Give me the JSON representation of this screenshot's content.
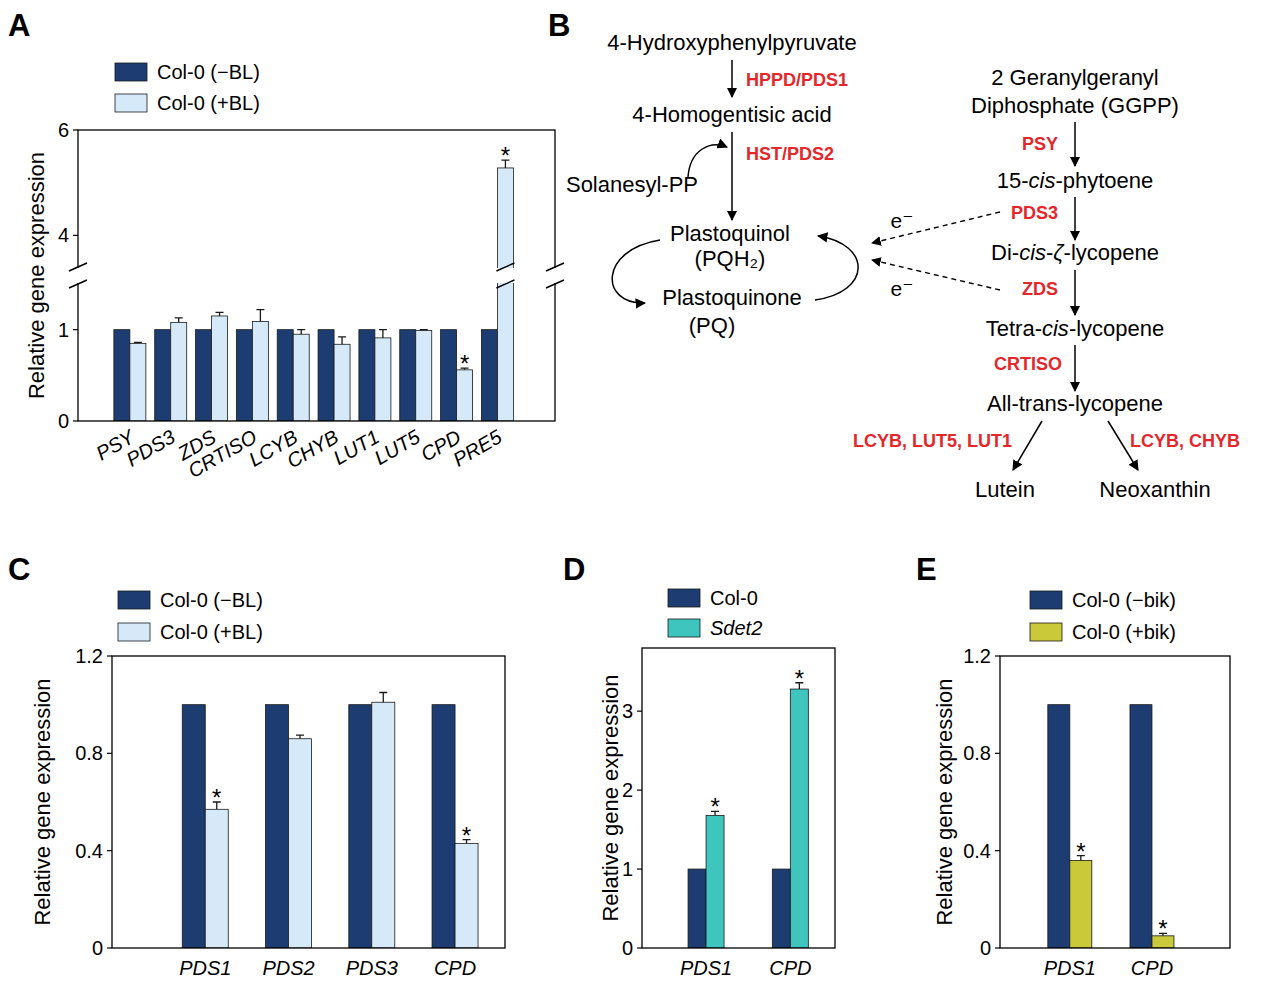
{
  "chart_data": [
    {
      "panel_label": "A",
      "type": "bar",
      "y_label": "Relative gene expression",
      "categories": [
        "PSY",
        "PDS3",
        "ZDS",
        "CRTISO",
        "LCYB",
        "CHYB",
        "LUT1",
        "LUT5",
        "CPD",
        "PRE5"
      ],
      "series": [
        {
          "name": "Col-0 (−BL)",
          "color": "#1c3c72",
          "values": [
            1,
            1,
            1,
            1,
            1,
            1,
            1,
            1,
            1,
            1
          ]
        },
        {
          "name": "Col-0 (+BL)",
          "color": "#d5e9f8",
          "values": [
            0.85,
            1.08,
            1.15,
            1.09,
            0.95,
            0.84,
            0.91,
            0.99,
            0.56,
            5.28
          ],
          "errors": [
            0.01,
            0.05,
            0.04,
            0.13,
            0.05,
            0.08,
            0.09,
            0.01,
            0.02,
            0.15
          ],
          "significance": [
            null,
            null,
            null,
            null,
            null,
            null,
            null,
            null,
            "*",
            "*"
          ]
        }
      ],
      "ylim": [
        0,
        6
      ],
      "yticks": [
        0,
        1,
        4,
        6
      ],
      "y_break": [
        1.5,
        3.4
      ],
      "legend": "top-left"
    },
    {
      "panel_label": "C",
      "type": "bar",
      "y_label": "Relative gene expression",
      "categories": [
        "PDS1",
        "PDS2",
        "PDS3",
        "CPD"
      ],
      "series": [
        {
          "name": "Col-0 (−BL)",
          "color": "#1c3c72",
          "values": [
            1,
            1,
            1,
            1
          ]
        },
        {
          "name": "Col-0 (+BL)",
          "color": "#d5e9f8",
          "values": [
            0.57,
            0.86,
            1.01,
            0.43
          ],
          "errors": [
            0.03,
            0.015,
            0.04,
            0.015
          ],
          "significance": [
            "*",
            null,
            null,
            "*"
          ]
        }
      ],
      "ylim": [
        0,
        1.2
      ],
      "yticks": [
        0,
        0.4,
        0.8,
        1.2
      ],
      "legend": "top-left"
    },
    {
      "panel_label": "D",
      "type": "bar",
      "y_label": "Relative gene expression",
      "categories": [
        "PDS1",
        "CPD"
      ],
      "series": [
        {
          "name": "Col-0",
          "color": "#1c3c72",
          "values": [
            1,
            1
          ]
        },
        {
          "name": "Sdet2",
          "color": "#3ec6be",
          "values": [
            1.68,
            3.28
          ],
          "errors": [
            0.05,
            0.08
          ],
          "significance": [
            "*",
            "*"
          ]
        }
      ],
      "ylim": [
        0,
        3.8
      ],
      "yticks": [
        0,
        1,
        2,
        3
      ],
      "legend": "top-left"
    },
    {
      "panel_label": "E",
      "type": "bar",
      "y_label": "Relative gene expression",
      "categories": [
        "PDS1",
        "CPD"
      ],
      "series": [
        {
          "name": "Col-0 (−bik)",
          "color": "#1c3c72",
          "values": [
            1,
            1
          ]
        },
        {
          "name": "Col-0 (+bik)",
          "color": "#c9c93a",
          "values": [
            0.36,
            0.05
          ],
          "errors": [
            0.02,
            0.01
          ],
          "significance": [
            "*",
            "*"
          ]
        }
      ],
      "ylim": [
        0,
        1.2
      ],
      "yticks": [
        0,
        0.4,
        0.8,
        1.2
      ],
      "legend": "top-left"
    }
  ],
  "diagram": {
    "panel_label": "B",
    "nodes": [
      {
        "lines": [
          "4-Hydroxyphenylpyruvate"
        ]
      },
      {
        "lines": [
          "4-Homogentisic acid"
        ]
      },
      {
        "lines": [
          "Solanesyl-PP"
        ]
      },
      {
        "lines": [
          "Plastoquinol",
          "(PQH₂)"
        ]
      },
      {
        "lines": [
          "Plastoquinone",
          "(PQ)"
        ]
      },
      {
        "lines": [
          "2 Geranylgeranyl",
          "Diphosphate (GGPP)"
        ]
      },
      {
        "lines": [
          "15-cis-phytoene"
        ]
      },
      {
        "lines": [
          "Di-cis-ζ-lycopene"
        ]
      },
      {
        "lines": [
          "Tetra-cis-lycopene"
        ]
      },
      {
        "lines": [
          "All-trans-lycopene"
        ]
      },
      {
        "lines": [
          "Lutein"
        ]
      },
      {
        "lines": [
          "Neoxanthin"
        ]
      }
    ],
    "enzymes": [
      "HPPD/PDS1",
      "HST/PDS2",
      "PSY",
      "PDS3",
      "ZDS",
      "CRTISO",
      "LCYB, LUT5, LUT1",
      "LCYB, CHYB"
    ],
    "electrons": [
      "e⁻",
      "e⁻"
    ]
  }
}
